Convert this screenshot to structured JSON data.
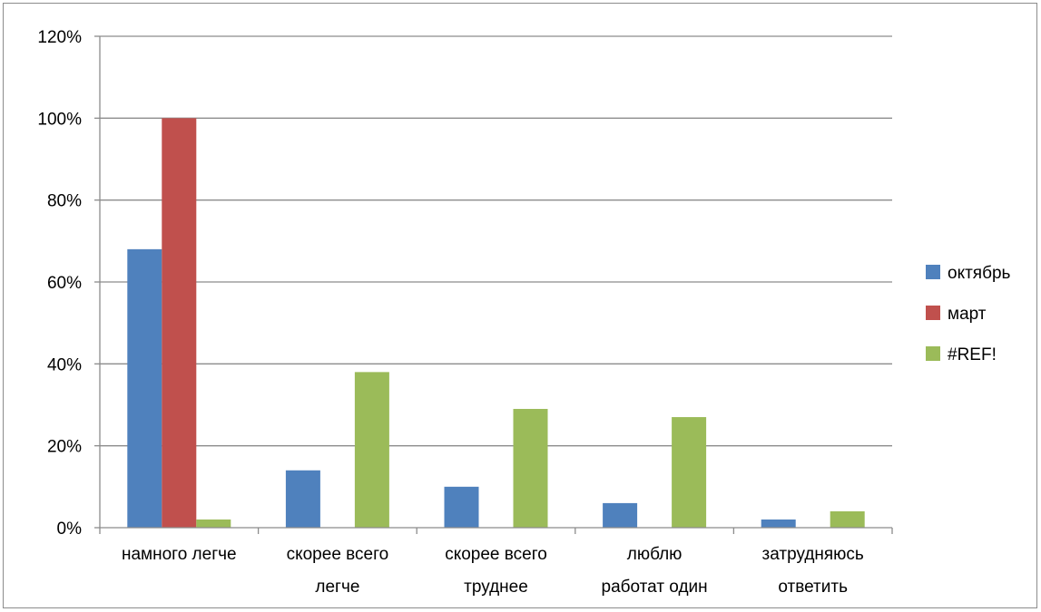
{
  "chart_data": {
    "type": "bar",
    "categories": [
      [
        "намного легче"
      ],
      [
        "скорее всего",
        "легче"
      ],
      [
        "скорее всего",
        "труднее"
      ],
      [
        "люблю",
        "работат один"
      ],
      [
        "затрудняюсь",
        "ответить"
      ]
    ],
    "series": [
      {
        "name": "октябрь",
        "color": "#4f81bd",
        "values": [
          0.68,
          0.14,
          0.1,
          0.06,
          0.02
        ]
      },
      {
        "name": "март",
        "color": "#c0504d",
        "values": [
          1.0,
          0,
          0,
          0,
          0
        ]
      },
      {
        "name": "#REF!",
        "color": "#9bbb59",
        "values": [
          0.02,
          0.38,
          0.29,
          0.27,
          0.04
        ]
      }
    ],
    "y_ticks": [
      "0%",
      "20%",
      "40%",
      "60%",
      "80%",
      "100%",
      "120%"
    ],
    "ylim": [
      0,
      1.2
    ],
    "title": "",
    "xlabel": "",
    "ylabel": "",
    "grid": true,
    "legend_position": "right"
  }
}
